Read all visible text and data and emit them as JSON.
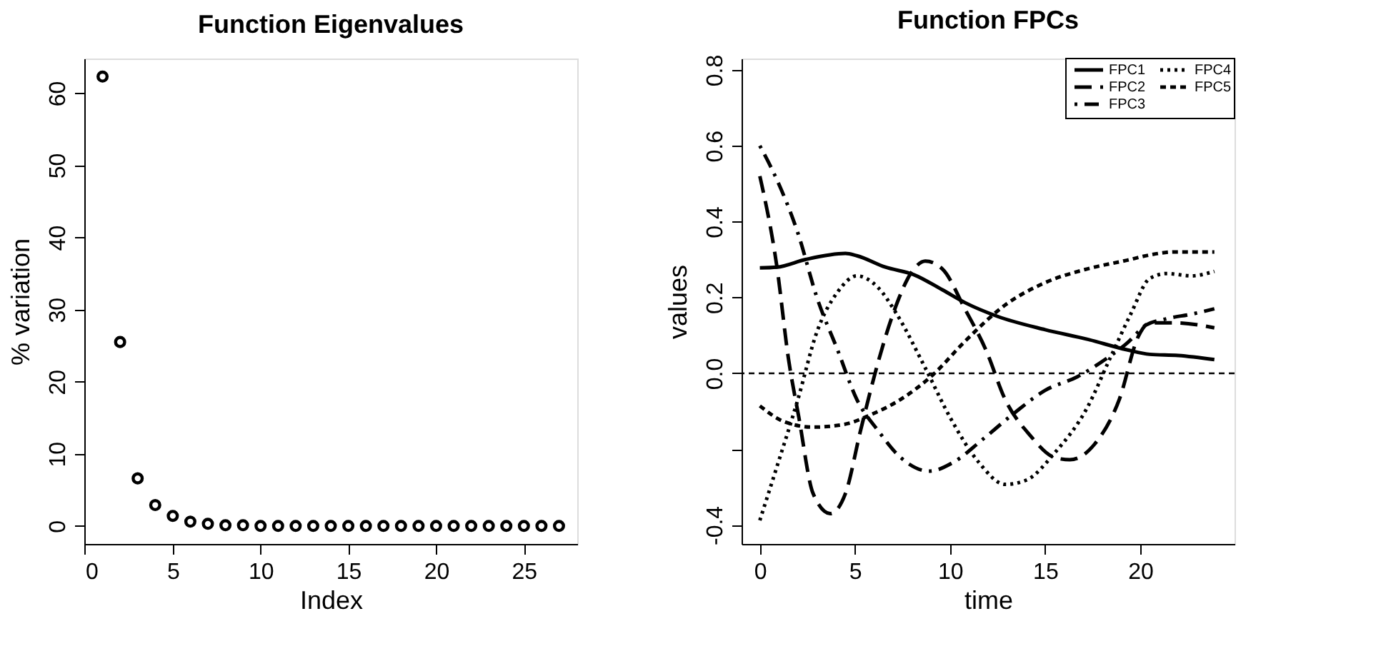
{
  "chart_data": [
    {
      "type": "scatter",
      "title": "Function Eigenvalues",
      "xlabel": "Index",
      "ylabel": "% variation",
      "marker": "circle",
      "grid": false,
      "x": [
        1,
        2,
        3,
        4,
        5,
        6,
        7,
        8,
        9,
        10,
        11,
        12,
        13,
        14,
        15,
        16,
        17,
        18,
        19,
        20,
        21,
        22,
        23,
        24,
        25,
        26,
        27
      ],
      "series": [
        {
          "color": "#000000",
          "values": [
            62.3,
            25.5,
            6.6,
            2.9,
            1.4,
            0.6,
            0.3,
            0.1,
            0.1,
            0,
            0,
            0,
            0,
            0,
            0,
            0,
            0,
            0,
            0,
            0,
            0,
            0,
            0,
            0,
            0,
            0,
            0
          ]
        }
      ],
      "xlim": [
        -0.04,
        28.04
      ],
      "ylim": [
        -2.49,
        64.8
      ],
      "xticks": [
        0,
        5,
        10,
        15,
        20,
        25
      ],
      "yticks": [
        0,
        10,
        20,
        30,
        40,
        50,
        60
      ]
    },
    {
      "type": "line",
      "title": "Function FPCs",
      "xlabel": "time",
      "ylabel": "values",
      "grid": false,
      "legend": "top right",
      "marker": "none",
      "xlim": [
        -0.96,
        24.96
      ],
      "ylim": [
        -0.45,
        0.83
      ],
      "xticks": [
        0,
        5,
        10,
        15,
        20
      ],
      "yticks": [
        {
          "value": -0.4,
          "label": "-0.4"
        },
        {
          "value": -0.2,
          "label": null
        },
        {
          "value": 0,
          "label": "0.0"
        },
        {
          "value": 0.2,
          "label": "0.2"
        },
        {
          "value": 0.4,
          "label": "0.4"
        },
        {
          "value": 0.6,
          "label": "0.6"
        },
        {
          "value": 0.8,
          "label": "0.8"
        }
      ],
      "ref_lines": [
        {
          "axis": "y",
          "value": 0,
          "label": null,
          "line_style": "dashed",
          "color": "#000000"
        }
      ],
      "series": [
        {
          "name": "FPC1",
          "color": "#000000",
          "line_style": "solid",
          "x": [
            0,
            0.9,
            2.4,
            4.5,
            5.1,
            6.6,
            8.1,
            9.6,
            10.8,
            12.5,
            15,
            17.2,
            19.3,
            20.5,
            22,
            23.9
          ],
          "values": [
            0.278,
            0.28,
            0.3,
            0.316,
            0.31,
            0.28,
            0.26,
            0.22,
            0.186,
            0.15,
            0.115,
            0.09,
            0.062,
            0.05,
            0.047,
            0.036
          ]
        },
        {
          "name": "FPC2",
          "color": "#000000",
          "line_style": "longdash",
          "x": [
            0,
            0.9,
            1.5,
            2.05,
            2.8,
            3.7,
            4.5,
            5.3,
            6.2,
            7,
            8.1,
            8.7,
            9.6,
            10.8,
            11.9,
            12.9,
            14.2,
            15.5,
            16.3,
            17.6,
            18.9,
            19.9,
            20.5,
            21.8,
            23.9
          ],
          "values": [
            0.52,
            0.28,
            0.04,
            -0.116,
            -0.317,
            -0.37,
            -0.317,
            -0.15,
            0.026,
            0.156,
            0.275,
            0.296,
            0.275,
            0.168,
            0.06,
            -0.069,
            -0.163,
            -0.222,
            -0.228,
            -0.187,
            -0.069,
            0.097,
            0.133,
            0.133,
            0.12
          ]
        },
        {
          "name": "FPC3",
          "color": "#000000",
          "line_style": "dashdot",
          "x": [
            0,
            0.9,
            2,
            3,
            4.1,
            5.1,
            6.2,
            7.4,
            8.9,
            10.2,
            11.7,
            13.4,
            15,
            16.7,
            18.2,
            19.3,
            20.3,
            21.4,
            22.7,
            23.9
          ],
          "values": [
            0.6,
            0.51,
            0.37,
            0.2,
            0.06,
            -0.069,
            -0.15,
            -0.222,
            -0.258,
            -0.234,
            -0.175,
            -0.104,
            -0.045,
            -0.009,
            0.038,
            0.079,
            0.127,
            0.144,
            0.156,
            0.17
          ]
        },
        {
          "name": "FPC4",
          "color": "#000000",
          "line_style": "dotted",
          "x": [
            0,
            0.9,
            2,
            3,
            4.1,
            5.1,
            6.2,
            7.2,
            8.7,
            10,
            11.5,
            12.9,
            14,
            15.5,
            17.2,
            18.4,
            19.5,
            20.5,
            21.4,
            22.7,
            23.9
          ],
          "values": [
            -0.388,
            -0.246,
            -0.069,
            0.109,
            0.215,
            0.257,
            0.227,
            0.156,
            0.014,
            -0.116,
            -0.234,
            -0.293,
            -0.282,
            -0.21,
            -0.092,
            0.038,
            0.156,
            0.25,
            0.263,
            0.257,
            0.269
          ]
        },
        {
          "name": "FPC5",
          "color": "#000000",
          "line_style": "dashed",
          "x": [
            0,
            1.3,
            2.8,
            4.5,
            5.8,
            7.4,
            9.1,
            10.8,
            12.9,
            15,
            17.2,
            19.3,
            20.5,
            21.8,
            23.9
          ],
          "values": [
            -0.086,
            -0.128,
            -0.142,
            -0.134,
            -0.11,
            -0.069,
            -0.004,
            0.085,
            0.18,
            0.239,
            0.275,
            0.298,
            0.312,
            0.32,
            0.32
          ]
        }
      ]
    }
  ]
}
